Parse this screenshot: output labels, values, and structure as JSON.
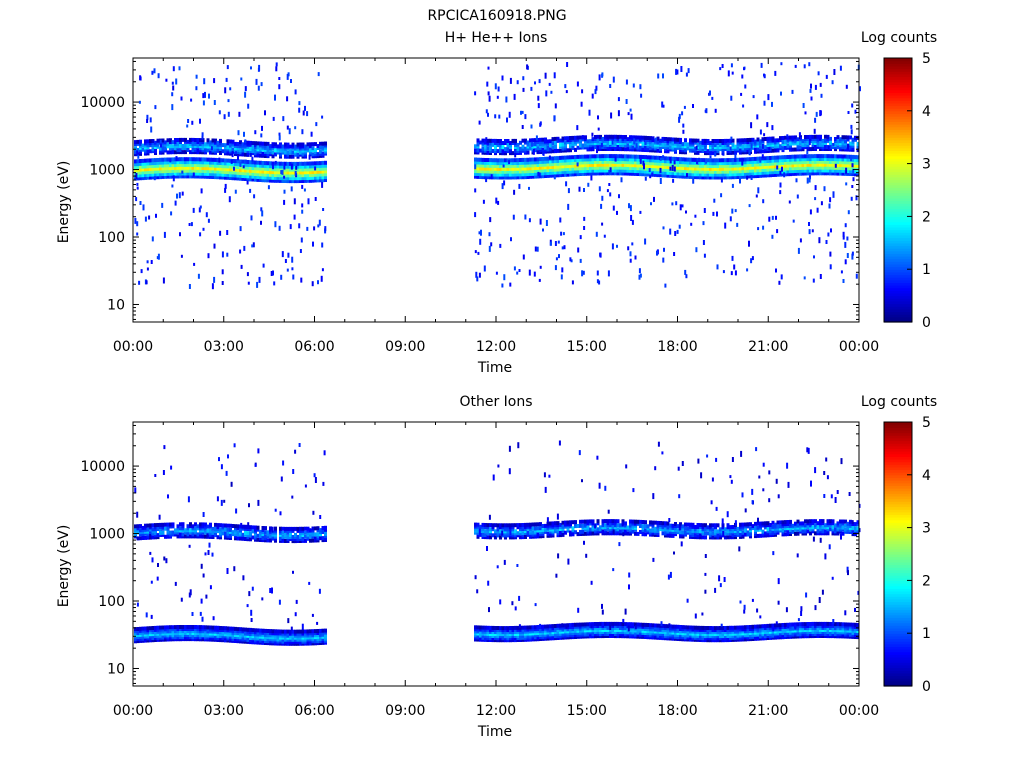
{
  "figure": {
    "title": "RPCICA160918.PNG"
  },
  "chart_data": [
    {
      "type": "heatmap",
      "title": "H+ He++ Ions",
      "xlabel": "Time",
      "ylabel": "Energy (eV)",
      "x_ticks": [
        "00:00",
        "03:00",
        "06:00",
        "09:00",
        "12:00",
        "15:00",
        "18:00",
        "21:00",
        "00:00"
      ],
      "xlim_hours": [
        0,
        24
      ],
      "y_scale": "log",
      "ylim": [
        5.5,
        45000
      ],
      "y_ticks": [
        10,
        100,
        1000,
        10000
      ],
      "colorbar": {
        "label": "Log counts",
        "range": [
          0,
          5
        ],
        "ticks": [
          "0",
          "1",
          "2",
          "3",
          "4",
          "5"
        ],
        "colormap": "jet"
      },
      "data_gaps_hours": [
        [
          6.35,
          11.25
        ]
      ],
      "bands": [
        {
          "name": "main",
          "energy_ev": 950,
          "log_counts": 3.1,
          "coverage_hours": [
            [
              0,
              6.35
            ],
            [
              11.25,
              24
            ]
          ]
        },
        {
          "name": "upper",
          "energy_ev": 2000,
          "log_counts": 1.6,
          "coverage_hours": [
            [
              0,
              6.35
            ],
            [
              11.25,
              24
            ]
          ]
        }
      ],
      "background": {
        "energy_range_ev": [
          20,
          40000
        ],
        "log_counts": 0.5,
        "density": "sparse"
      }
    },
    {
      "type": "heatmap",
      "title": "Other Ions",
      "xlabel": "Time",
      "ylabel": "Energy (eV)",
      "x_ticks": [
        "00:00",
        "03:00",
        "06:00",
        "09:00",
        "12:00",
        "15:00",
        "18:00",
        "21:00",
        "00:00"
      ],
      "xlim_hours": [
        0,
        24
      ],
      "y_scale": "log",
      "ylim": [
        5.5,
        45000
      ],
      "y_ticks": [
        10,
        100,
        1000,
        10000
      ],
      "colorbar": {
        "label": "Log counts",
        "range": [
          0,
          5
        ],
        "ticks": [
          "0",
          "1",
          "2",
          "3",
          "4",
          "5"
        ],
        "colormap": "jet"
      },
      "data_gaps_hours": [
        [
          6.35,
          11.25
        ]
      ],
      "bands": [
        {
          "name": "upper",
          "energy_ev": 1000,
          "log_counts": 1.5,
          "coverage_hours": [
            [
              0,
              6.35
            ],
            [
              11.25,
              24
            ]
          ]
        },
        {
          "name": "low",
          "energy_ev": 30,
          "log_counts": 1.6,
          "coverage_hours": [
            [
              0,
              6.35
            ],
            [
              11.25,
              24
            ]
          ]
        }
      ],
      "background": {
        "energy_range_ev": [
          40,
          25000
        ],
        "log_counts": 0.3,
        "density": "very sparse"
      }
    }
  ]
}
